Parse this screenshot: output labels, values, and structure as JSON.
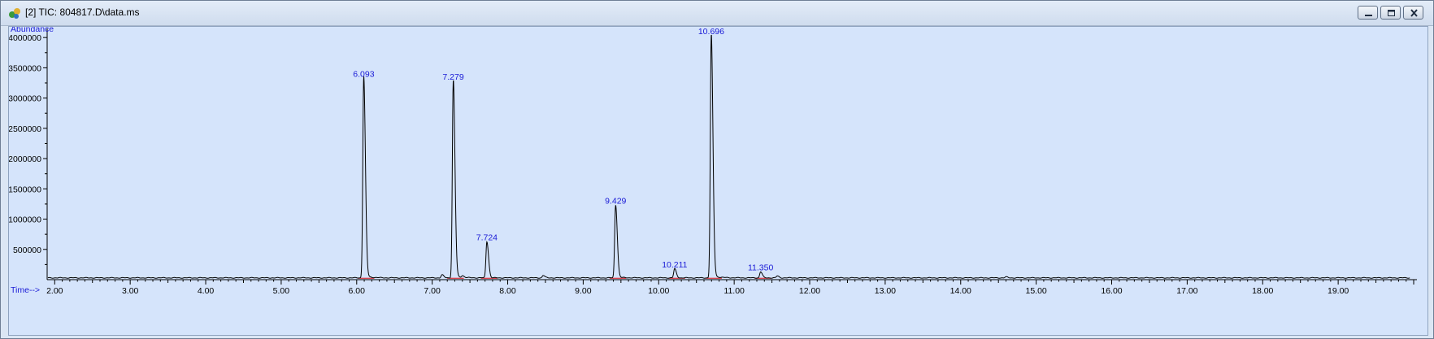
{
  "window": {
    "title": "[2] TIC: 804817.D\\data.ms",
    "icon": "chromatogram-icon",
    "controls": [
      "minimize-icon",
      "maximize-icon",
      "close-icon"
    ]
  },
  "colors": {
    "plot_background": "#d5e4fb",
    "trace": "#000000",
    "baseline": "#e0101a",
    "peak_labels": "#1a1ad6",
    "axis_labels": "#1a1ad6"
  },
  "chart_data": {
    "type": "line",
    "ylabel": "Abundance",
    "xlabel": "Time-->",
    "xlim": [
      1.9,
      20.0
    ],
    "ylim": [
      0,
      4150000
    ],
    "x_ticks": [
      "2.00",
      "3.00",
      "4.00",
      "5.00",
      "6.00",
      "7.00",
      "8.00",
      "9.00",
      "10.00",
      "11.00",
      "12.00",
      "13.00",
      "14.00",
      "15.00",
      "16.00",
      "17.00",
      "18.00",
      "19.00"
    ],
    "y_ticks": [
      "500000",
      "1000000",
      "1500000",
      "2000000",
      "2500000",
      "3000000",
      "3500000",
      "4000000"
    ],
    "grid": false,
    "baseline_level": 30000,
    "peaks": [
      {
        "label": "6.093",
        "rt": 6.093,
        "height": 3300000
      },
      {
        "label": "7.279",
        "rt": 7.279,
        "height": 3250000
      },
      {
        "label": "7.724",
        "rt": 7.724,
        "height": 600000
      },
      {
        "label": "9.429",
        "rt": 9.429,
        "height": 1200000
      },
      {
        "label": "10.211",
        "rt": 10.211,
        "height": 150000
      },
      {
        "label": "10.696",
        "rt": 10.696,
        "height": 4000000
      },
      {
        "label": "11.350",
        "rt": 11.35,
        "height": 100000
      }
    ],
    "minor_peaks": [
      {
        "rt": 7.13,
        "height": 50000
      },
      {
        "rt": 7.4,
        "height": 30000
      },
      {
        "rt": 8.47,
        "height": 40000
      },
      {
        "rt": 11.57,
        "height": 30000
      },
      {
        "rt": 14.6,
        "height": 15000
      }
    ]
  }
}
